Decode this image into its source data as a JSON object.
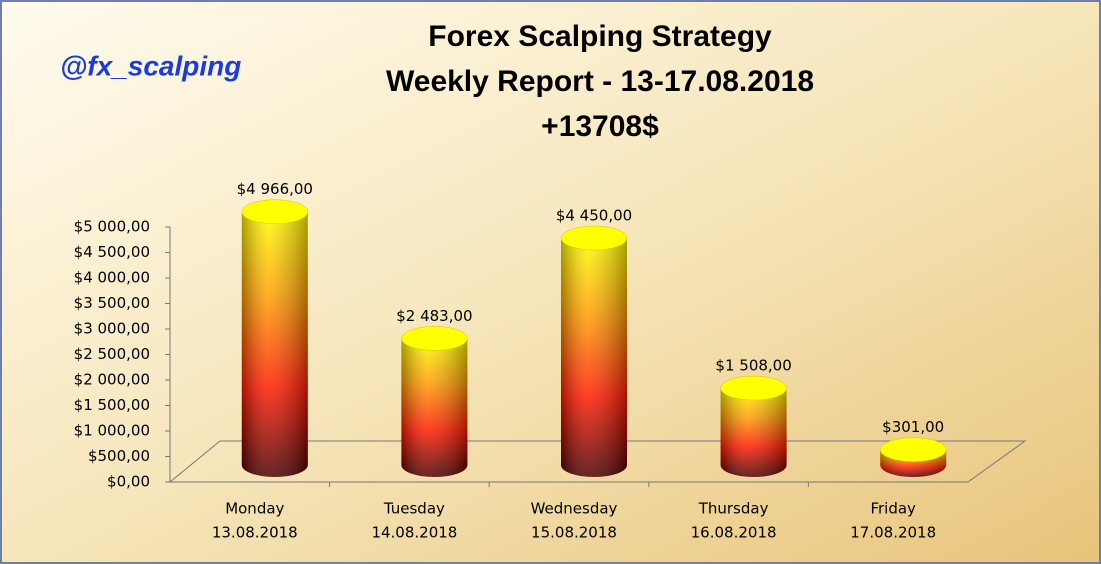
{
  "chart_data": {
    "type": "bar3d",
    "title": [
      "Forex Scalping Strategy",
      "Weekly Report - 13-17.08.2018",
      "+13708$"
    ],
    "annotation": "@fx_scalping",
    "categories": [
      [
        "Monday",
        "13.08.2018"
      ],
      [
        "Tuesday",
        "14.08.2018"
      ],
      [
        "Wednesday",
        "15.08.2018"
      ],
      [
        "Thursday",
        "16.08.2018"
      ],
      [
        "Friday",
        "17.08.2018"
      ]
    ],
    "values": [
      4966,
      2483,
      4450,
      1508,
      301
    ],
    "value_labels": [
      "$4 966,00",
      "$2 483,00",
      "$4 450,00",
      "$1 508,00",
      "$301,00"
    ],
    "ylim": [
      0,
      5000
    ],
    "yticks": [
      {
        "value": 0,
        "label": "$0,00"
      },
      {
        "value": 500,
        "label": "$500,00"
      },
      {
        "value": 1000,
        "label": "$1 000,00"
      },
      {
        "value": 1500,
        "label": "$1 500,00"
      },
      {
        "value": 2000,
        "label": "$2 000,00"
      },
      {
        "value": 2500,
        "label": "$2 500,00"
      },
      {
        "value": 3000,
        "label": "$3 000,00"
      },
      {
        "value": 3500,
        "label": "$3 500,00"
      },
      {
        "value": 4000,
        "label": "$4 000,00"
      },
      {
        "value": 4500,
        "label": "$4 500,00"
      },
      {
        "value": 5000,
        "label": "$5 000,00"
      }
    ],
    "colors": [
      "#4a0000",
      "#ff1a00",
      "#ff9a00",
      "#ffff00"
    ]
  }
}
